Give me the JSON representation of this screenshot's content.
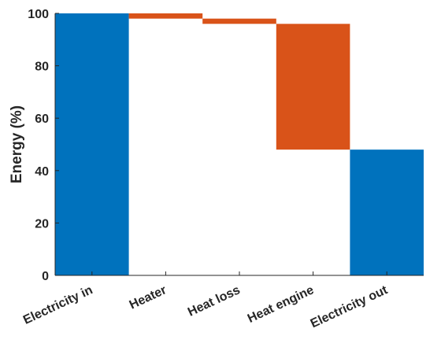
{
  "chart_data": {
    "type": "bar",
    "subtype": "waterfall",
    "title": "",
    "xlabel": "",
    "ylabel": "Energy (%)",
    "ylim": [
      0,
      100
    ],
    "yticks": [
      0,
      20,
      40,
      60,
      80,
      100
    ],
    "grid": false,
    "legend": "none",
    "categories": [
      "Electricity in",
      "Heater",
      "Heat loss",
      "Heat engine",
      "Electricity out"
    ],
    "bars": [
      {
        "category": "Electricity in",
        "start": 0,
        "end": 100,
        "kind": "total"
      },
      {
        "category": "Heater",
        "start": 98,
        "end": 100,
        "kind": "loss"
      },
      {
        "category": "Heat loss",
        "start": 96,
        "end": 98,
        "kind": "loss"
      },
      {
        "category": "Heat engine",
        "start": 48,
        "end": 96,
        "kind": "loss"
      },
      {
        "category": "Electricity out",
        "start": 0,
        "end": 48,
        "kind": "total"
      }
    ],
    "colors": {
      "total": "#0072BD",
      "loss": "#D95319",
      "axis": "#262626"
    }
  }
}
